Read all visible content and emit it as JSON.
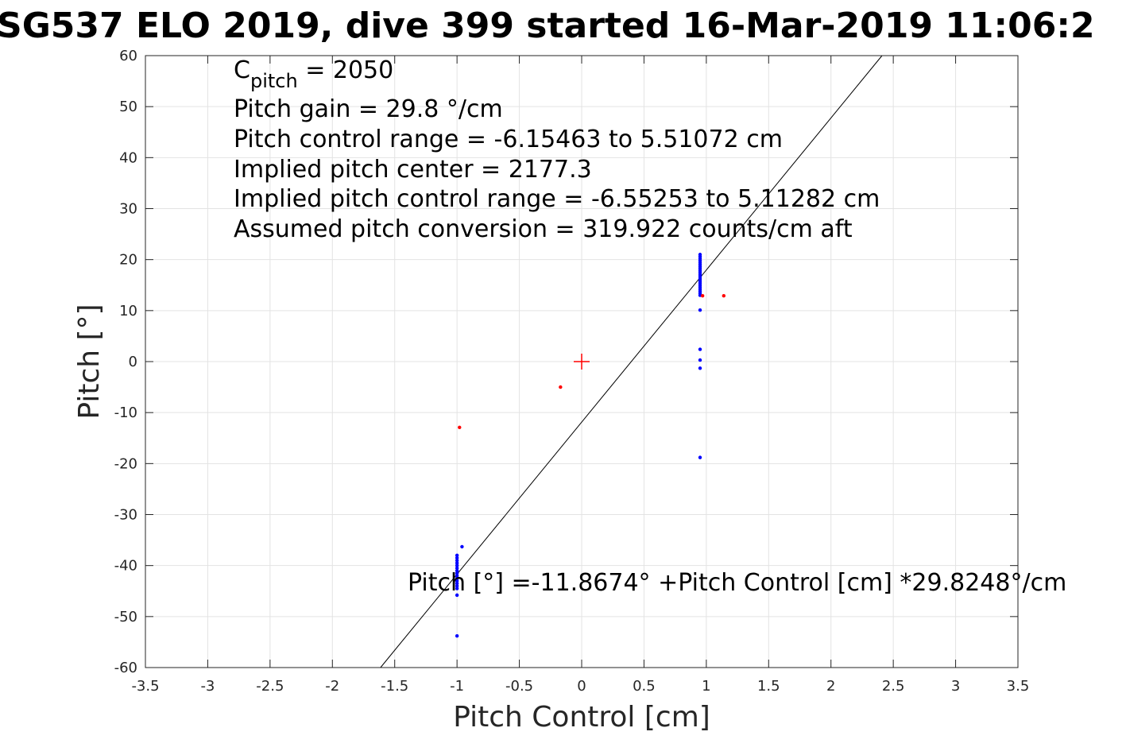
{
  "chart_data": {
    "type": "scatter",
    "title": "SG537 ELO 2019, dive 399 started 16-Mar-2019 11:06:2",
    "xlabel": "Pitch Control [cm]",
    "ylabel": "Pitch [°]",
    "xlim": [
      -3.5,
      3.5
    ],
    "ylim": [
      -60,
      60
    ],
    "x_ticks": [
      -3.5,
      -3,
      -2.5,
      -2,
      -1.5,
      -1,
      -0.5,
      0,
      0.5,
      1,
      1.5,
      2,
      2.5,
      3,
      3.5
    ],
    "x_tick_labels": [
      "-3.5",
      "-3",
      "-2.5",
      "-2",
      "-1.5",
      "-1",
      "-0.5",
      "0",
      "0.5",
      "1",
      "1.5",
      "2",
      "2.5",
      "3",
      "3.5"
    ],
    "y_ticks": [
      -60,
      -50,
      -40,
      -30,
      -20,
      -10,
      0,
      10,
      20,
      30,
      40,
      50,
      60
    ],
    "y_tick_labels": [
      "-60",
      "-50",
      "-40",
      "-30",
      "-20",
      "-10",
      "0",
      "10",
      "20",
      "30",
      "40",
      "50",
      "60"
    ],
    "grid": true,
    "box": true,
    "fit_line": {
      "intercept": -11.8674,
      "slope": 29.8248,
      "color": "#000000"
    },
    "center_marker": {
      "x": 0,
      "y": 0,
      "marker": "+",
      "color": "#ff0000"
    },
    "series": [
      {
        "color": "#0000ff",
        "points": [
          [
            0.95,
            21.0
          ],
          [
            0.95,
            20.6
          ],
          [
            0.95,
            20.2
          ],
          [
            0.95,
            19.8
          ],
          [
            0.95,
            19.4
          ],
          [
            0.95,
            19.0
          ],
          [
            0.95,
            18.6
          ],
          [
            0.95,
            18.2
          ],
          [
            0.95,
            17.8
          ],
          [
            0.95,
            17.4
          ],
          [
            0.95,
            17.0
          ],
          [
            0.95,
            16.6
          ],
          [
            0.95,
            16.2
          ],
          [
            0.95,
            15.8
          ],
          [
            0.95,
            15.4
          ],
          [
            0.95,
            15.0
          ],
          [
            0.95,
            14.6
          ],
          [
            0.95,
            14.2
          ],
          [
            0.95,
            13.8
          ],
          [
            0.95,
            13.4
          ],
          [
            0.95,
            13.0
          ],
          [
            0.95,
            10.1
          ],
          [
            0.95,
            2.4
          ],
          [
            0.95,
            0.3
          ],
          [
            0.95,
            -1.3
          ],
          [
            0.95,
            -18.8
          ],
          [
            -1.0,
            -38.0
          ],
          [
            -1.0,
            -38.5
          ],
          [
            -1.0,
            -39.0
          ],
          [
            -1.0,
            -39.5
          ],
          [
            -1.0,
            -40.0
          ],
          [
            -1.0,
            -40.5
          ],
          [
            -1.0,
            -41.0
          ],
          [
            -1.0,
            -41.5
          ],
          [
            -1.0,
            -42.0
          ],
          [
            -1.0,
            -42.5
          ],
          [
            -1.0,
            -43.0
          ],
          [
            -1.0,
            -43.5
          ],
          [
            -1.0,
            -44.0
          ],
          [
            -1.0,
            -44.5
          ],
          [
            -1.0,
            -45.8
          ],
          [
            -1.0,
            -53.8
          ],
          [
            -0.96,
            -36.3
          ]
        ]
      },
      {
        "color": "#ff0000",
        "points": [
          [
            0.97,
            12.9
          ],
          [
            1.14,
            12.9
          ],
          [
            -0.17,
            -5.0
          ],
          [
            -0.98,
            -12.9
          ]
        ]
      }
    ],
    "annotations": {
      "cpitch_base": "C",
      "cpitch_sub": "pitch",
      "cpitch_value": " = 2050",
      "line2": "Pitch gain = 29.8 °/cm",
      "line3": "Pitch control range = -6.15463 to 5.51072 cm",
      "line4": "Implied pitch center = 2177.3",
      "line5": "Implied pitch control range = -6.55253 to 5.11282 cm",
      "line6": "Assumed pitch conversion = 319.922 counts/cm aft",
      "fit_equation": "Pitch [°] =-11.8674° +Pitch Control [cm] *29.8248°/cm"
    }
  }
}
